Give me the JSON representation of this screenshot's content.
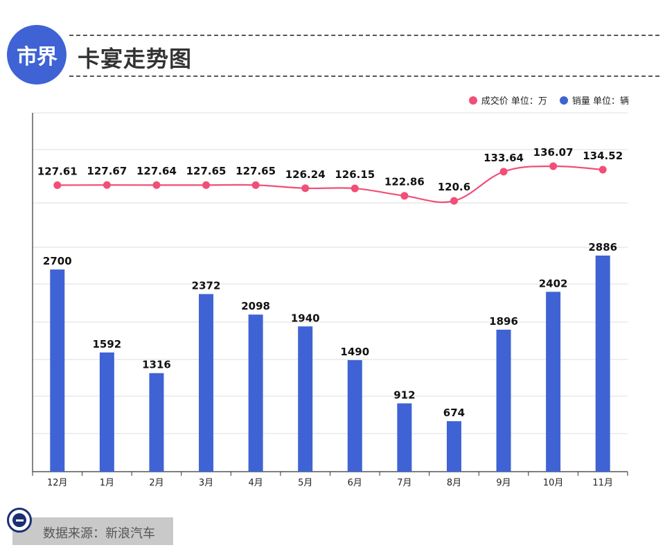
{
  "header": {
    "logo_text": "市界",
    "title": "卡宴走势图"
  },
  "legend": [
    {
      "label": "成交价  单位：万",
      "color": "#f04f77"
    },
    {
      "label": "销量  单位：辆",
      "color": "#3f63d4"
    }
  ],
  "source": {
    "text": "数据来源：新浪汽车"
  },
  "chart_data": {
    "type": "bar",
    "categories": [
      "12月",
      "1月",
      "2月",
      "3月",
      "4月",
      "5月",
      "6月",
      "7月",
      "8月",
      "9月",
      "10月",
      "11月"
    ],
    "series": [
      {
        "name": "销量",
        "unit": "辆",
        "type": "bar",
        "color": "#3f63d4",
        "values": [
          2700,
          1592,
          1316,
          2372,
          2098,
          1940,
          1490,
          912,
          674,
          1896,
          2402,
          2886
        ],
        "labels": [
          "2700",
          "1592",
          "1316",
          "2372",
          "2098",
          "1940",
          "1490",
          "912",
          "674",
          "1896",
          "2402",
          "2886"
        ]
      },
      {
        "name": "成交价",
        "unit": "万",
        "type": "line",
        "color": "#f04f77",
        "values": [
          127.61,
          127.67,
          127.64,
          127.65,
          127.65,
          126.24,
          126.15,
          122.86,
          120.6,
          133.64,
          136.07,
          134.52
        ],
        "labels": [
          "127.61",
          "127.67",
          "127.64",
          "127.65",
          "127.65",
          "126.24",
          "126.15",
          "122.86",
          "120.6",
          "133.64",
          "136.07",
          "134.52"
        ]
      }
    ],
    "grid": true,
    "legend_position": "top-right"
  }
}
